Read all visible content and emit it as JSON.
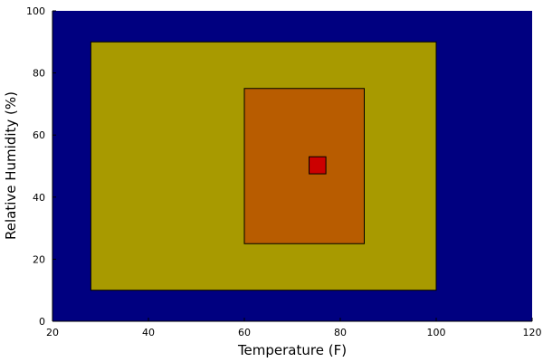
{
  "chart_data": {
    "type": "area",
    "xlabel": "Temperature (F)",
    "ylabel": "Relative Humidity (%)",
    "xlim": [
      20,
      120
    ],
    "ylim": [
      0,
      100
    ],
    "xticks": [
      20,
      40,
      60,
      80,
      100,
      120
    ],
    "yticks": [
      0,
      20,
      40,
      60,
      80,
      100
    ],
    "grid": false,
    "background_color": "#000080",
    "regions": [
      {
        "x": [
          28,
          100
        ],
        "y": [
          10,
          90
        ],
        "color": "#a89a00"
      },
      {
        "x": [
          60,
          85
        ],
        "y": [
          25,
          75
        ],
        "color": "#b85c00"
      },
      {
        "x": [
          73.5,
          77
        ],
        "y": [
          47.5,
          53
        ],
        "color": "#cc0000"
      }
    ]
  }
}
